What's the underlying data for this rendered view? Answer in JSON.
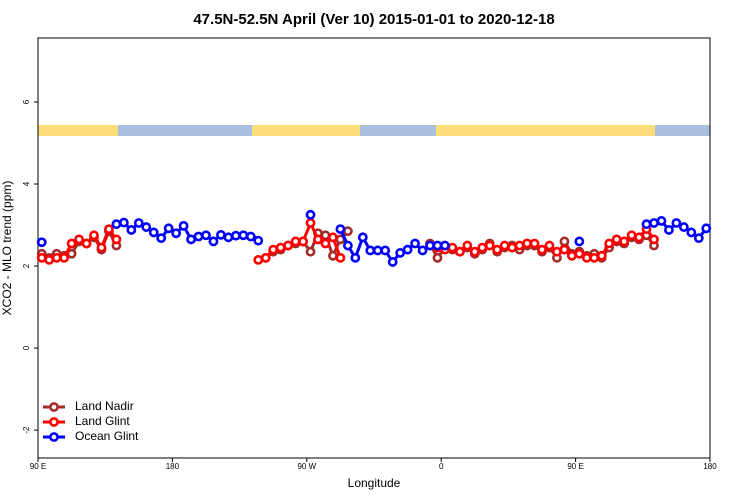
{
  "chart_data": {
    "type": "line",
    "title": "47.5N-52.5N April (Ver 10)   2015-01-01 to 2020-12-18",
    "xlabel": "Longitude",
    "ylabel": "XCO2 - MLO trend (ppm)",
    "xlim": [
      90,
      540
    ],
    "xticks": [
      {
        "value": 90,
        "label": "90 E"
      },
      180,
      {
        "value": 270,
        "label": "90 W"
      },
      {
        "value": 360,
        "label": "0"
      },
      {
        "value": 450,
        "label": "90 E"
      },
      {
        "value": 540,
        "label": "180"
      }
    ],
    "ylim": [
      -2.68,
      7.56
    ],
    "yticks": [
      -2,
      0,
      2,
      4,
      6
    ],
    "legend": "bottom-left",
    "x": [
      92.5,
      97.5,
      102.5,
      107.5,
      112.5,
      117.5,
      122.5,
      127.5,
      132.5,
      137.5,
      142.5,
      147.5,
      152.5,
      157.5,
      162.5,
      167.5,
      172.5,
      177.5,
      182.5,
      187.5,
      192.5,
      197.5,
      202.5,
      207.5,
      212.5,
      217.5,
      222.5,
      227.5,
      232.5,
      237.5,
      242.5,
      247.5,
      252.5,
      257.5,
      262.5,
      267.5,
      272.5,
      277.5,
      282.5,
      287.5,
      292.5,
      297.5,
      302.5,
      307.5,
      312.5,
      317.5,
      322.5,
      327.5,
      332.5,
      337.5,
      342.5,
      347.5,
      352.5,
      357.5,
      362.5,
      367.5,
      372.5,
      377.5,
      382.5,
      387.5,
      392.5,
      397.5,
      402.5,
      407.5,
      412.5,
      417.5,
      422.5,
      427.5,
      432.5,
      437.5,
      442.5,
      447.5,
      452.5,
      457.5,
      462.5,
      467.5,
      472.5,
      477.5,
      482.5,
      487.5,
      492.5,
      497.5,
      502.5,
      507.5,
      512.5,
      517.5,
      522.5,
      527.5,
      532.5,
      537.5
    ],
    "series": [
      {
        "name": "Land Nadir",
        "color": "#a52a2a",
        "values": [
          2.3,
          2.2,
          2.3,
          2.25,
          2.3,
          2.6,
          2.55,
          2.7,
          2.4,
          2.85,
          2.5,
          null,
          null,
          null,
          null,
          null,
          null,
          null,
          null,
          null,
          null,
          null,
          null,
          null,
          null,
          null,
          null,
          null,
          null,
          null,
          2.2,
          2.35,
          2.4,
          2.5,
          2.55,
          2.6,
          2.35,
          2.8,
          2.75,
          2.25,
          2.65,
          2.85,
          null,
          null,
          null,
          null,
          null,
          null,
          null,
          null,
          null,
          null,
          2.55,
          2.2,
          2.45,
          2.4,
          2.35,
          2.45,
          2.3,
          2.4,
          2.55,
          2.35,
          2.45,
          2.5,
          2.4,
          2.5,
          2.5,
          2.35,
          2.45,
          2.2,
          2.6,
          2.3,
          2.35,
          2.25,
          2.3,
          2.2,
          2.45,
          2.6,
          2.55,
          2.7,
          2.65,
          2.75,
          2.5,
          null,
          null,
          null,
          null,
          null,
          null,
          null
        ]
      },
      {
        "name": "Land Glint",
        "color": "#ff0000",
        "values": [
          2.2,
          2.15,
          2.2,
          2.2,
          2.55,
          2.65,
          2.55,
          2.75,
          2.45,
          2.9,
          2.65,
          null,
          null,
          null,
          null,
          null,
          null,
          null,
          null,
          null,
          null,
          null,
          null,
          null,
          null,
          null,
          null,
          null,
          null,
          2.15,
          2.2,
          2.4,
          2.45,
          2.5,
          2.6,
          2.6,
          3.05,
          2.65,
          2.55,
          2.7,
          2.2,
          null,
          null,
          null,
          null,
          null,
          null,
          null,
          null,
          null,
          null,
          null,
          2.5,
          2.45,
          2.4,
          2.45,
          2.35,
          2.5,
          2.35,
          2.45,
          2.5,
          2.4,
          2.5,
          2.45,
          2.5,
          2.55,
          2.55,
          2.4,
          2.5,
          2.35,
          2.4,
          2.25,
          2.3,
          2.2,
          2.2,
          2.25,
          2.55,
          2.65,
          2.6,
          2.75,
          2.7,
          2.9,
          2.65,
          null,
          null,
          null,
          null,
          null,
          null,
          null
        ]
      },
      {
        "name": "Ocean Glint",
        "color": "#0000ff",
        "values": [
          2.58,
          null,
          null,
          null,
          null,
          null,
          null,
          null,
          null,
          null,
          3.02,
          3.06,
          2.88,
          3.05,
          2.95,
          2.82,
          2.68,
          2.92,
          2.8,
          2.98,
          2.65,
          2.72,
          2.75,
          2.6,
          2.76,
          2.7,
          2.74,
          2.75,
          2.72,
          2.62,
          null,
          null,
          null,
          null,
          null,
          null,
          3.25,
          null,
          null,
          null,
          2.9,
          2.5,
          2.2,
          2.7,
          2.38,
          2.38,
          2.38,
          2.1,
          2.32,
          2.4,
          2.55,
          2.38,
          2.5,
          2.5,
          2.5,
          null,
          null,
          null,
          null,
          null,
          null,
          null,
          null,
          null,
          null,
          null,
          null,
          null,
          null,
          null,
          null,
          null,
          2.6,
          null,
          null,
          null,
          null,
          null,
          null,
          null,
          null,
          3.02,
          3.05,
          3.1,
          2.88,
          3.05,
          2.95,
          2.82,
          2.68,
          2.92
        ]
      }
    ]
  }
}
